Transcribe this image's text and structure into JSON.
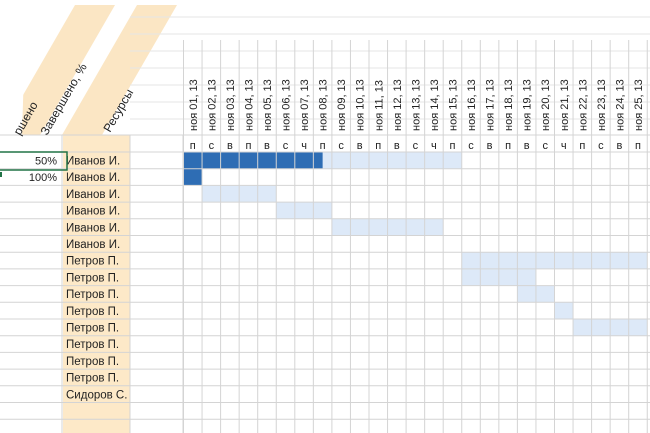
{
  "headers": {
    "col_partial": "ршено",
    "col_done_pct": "Завершено, %",
    "col_resources": "Ресурсы"
  },
  "rows": [
    {
      "pct": "50%",
      "resource": "Иванов И."
    },
    {
      "pct": "100%",
      "resource": "Иванов И."
    },
    {
      "pct": "",
      "resource": "Иванов И."
    },
    {
      "pct": "",
      "resource": "Иванов И."
    },
    {
      "pct": "",
      "resource": "Иванов И."
    },
    {
      "pct": "",
      "resource": "Иванов И."
    },
    {
      "pct": "",
      "resource": "Петров П."
    },
    {
      "pct": "",
      "resource": "Петров П."
    },
    {
      "pct": "",
      "resource": "Петров П."
    },
    {
      "pct": "",
      "resource": "Петров П."
    },
    {
      "pct": "",
      "resource": "Петров П."
    },
    {
      "pct": "",
      "resource": "Петров П."
    },
    {
      "pct": "",
      "resource": "Петров П."
    },
    {
      "pct": "",
      "resource": "Петров П."
    },
    {
      "pct": "",
      "resource": "Сидоров С."
    }
  ],
  "dates": [
    {
      "date": "ноя 01, 13",
      "dow": "п"
    },
    {
      "date": "ноя 02, 13",
      "dow": "с"
    },
    {
      "date": "ноя 03, 13",
      "dow": "в"
    },
    {
      "date": "ноя 04, 13",
      "dow": "п"
    },
    {
      "date": "ноя 05, 13",
      "dow": "в"
    },
    {
      "date": "ноя 06, 13",
      "dow": "с"
    },
    {
      "date": "ноя 07, 13",
      "dow": "ч"
    },
    {
      "date": "ноя 08, 13",
      "dow": "п"
    },
    {
      "date": "ноя 09, 13",
      "dow": "с"
    },
    {
      "date": "ноя 10, 13",
      "dow": "в"
    },
    {
      "date": "ноя 11, 13",
      "dow": "п"
    },
    {
      "date": "ноя 12, 13",
      "dow": "в"
    },
    {
      "date": "ноя 13, 13",
      "dow": "с"
    },
    {
      "date": "ноя 14, 13",
      "dow": "ч"
    },
    {
      "date": "ноя 15, 13",
      "dow": "п"
    },
    {
      "date": "ноя 16, 13",
      "dow": "с"
    },
    {
      "date": "ноя 17, 13",
      "dow": "в"
    },
    {
      "date": "ноя 18, 13",
      "dow": "п"
    },
    {
      "date": "ноя 19, 13",
      "dow": "в"
    },
    {
      "date": "ноя 20, 13",
      "dow": "с"
    },
    {
      "date": "ноя 21, 13",
      "dow": "ч"
    },
    {
      "date": "ноя 22, 13",
      "dow": "п"
    },
    {
      "date": "ноя 23, 13",
      "dow": "с"
    },
    {
      "date": "ноя 24, 13",
      "dow": "в"
    },
    {
      "date": "ноя 25, 13",
      "dow": "п"
    }
  ],
  "tasks": [
    {
      "row": 0,
      "start": "ноя 01, 13",
      "end": "ноя 15, 13",
      "complete": 0.5
    },
    {
      "row": 1,
      "start": "ноя 01, 13",
      "end": "ноя 01, 13",
      "complete": 1
    },
    {
      "row": 2,
      "start": "ноя 02, 13",
      "end": "ноя 05, 13",
      "complete": 0
    },
    {
      "row": 3,
      "start": "ноя 06, 13",
      "end": "ноя 08, 13",
      "complete": 0
    },
    {
      "row": 4,
      "start": "ноя 09, 13",
      "end": "ноя 14, 13",
      "complete": 0
    },
    {
      "row": 6,
      "start": "ноя 16, 13",
      "end": "ноя 25, 13",
      "complete": 0
    },
    {
      "row": 7,
      "start": "ноя 16, 13",
      "end": "ноя 19, 13",
      "complete": 0
    },
    {
      "row": 8,
      "start": "ноя 19, 13",
      "end": "ноя 20, 13",
      "complete": 0
    },
    {
      "row": 9,
      "start": "ноя 21, 13",
      "end": "ноя 21, 13",
      "complete": 0
    },
    {
      "row": 10,
      "start": "ноя 22, 13",
      "end": "ноя 25, 13",
      "complete": 0
    }
  ],
  "colors": {
    "band": "#fbe6c4",
    "resource_fill": "#fde9c8",
    "bar_done": "#2e6db4",
    "bar_plan": "#dde9f8",
    "grid": "#d4d4d4",
    "selection": "#217346"
  }
}
